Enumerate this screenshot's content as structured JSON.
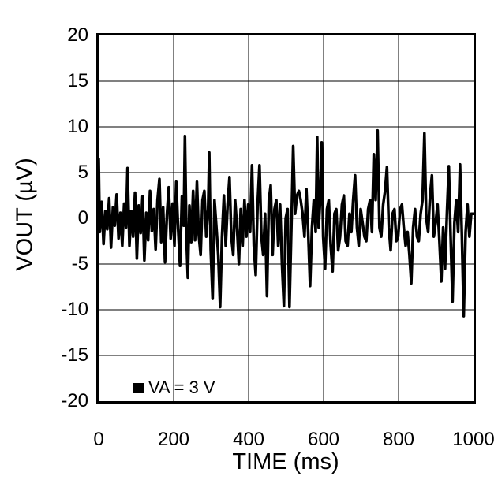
{
  "colors": {
    "background": "#ffffff",
    "trace": "#000000",
    "grid": "#000000",
    "zero_line": "#8c8c8c",
    "text": "#000000",
    "legend_marker": "#000000"
  },
  "chart_data": {
    "type": "line",
    "title": "",
    "xlabel": "TIME (ms)",
    "ylabel": "VOUT (µV)",
    "xlim": [
      0,
      1000
    ],
    "ylim": [
      -20,
      20
    ],
    "x_ticks": [
      0,
      200,
      400,
      600,
      800,
      1000
    ],
    "x_tick_labels": [
      "0",
      "200",
      "400",
      "600",
      "800",
      "1000"
    ],
    "y_ticks": [
      20,
      15,
      10,
      5,
      0,
      -5,
      -10,
      -15,
      -20
    ],
    "y_tick_labels": [
      "20",
      "15",
      "10",
      "5",
      "0",
      "-5",
      "-10",
      "-15",
      "-20"
    ],
    "grid": true,
    "legend": {
      "label": "VA = 3 V",
      "marker": "filled-square",
      "position": "bottom-left-inside"
    },
    "series": [
      {
        "name": "VA = 3 V",
        "color": "#000000",
        "x": [
          0,
          3,
          8,
          13,
          18,
          23,
          28,
          33,
          38,
          43,
          48,
          53,
          58,
          63,
          68,
          73,
          77,
          82,
          87,
          92,
          97,
          102,
          107,
          112,
          117,
          122,
          127,
          132,
          137,
          142,
          147,
          152,
          157,
          162,
          167,
          172,
          177,
          182,
          187,
          192,
          197,
          202,
          207,
          212,
          217,
          222,
          227,
          230,
          234,
          238,
          242,
          247,
          252,
          257,
          262,
          267,
          272,
          277,
          282,
          287,
          292,
          295,
          299,
          304,
          309,
          314,
          319,
          324,
          329,
          334,
          339,
          344,
          349,
          354,
          359,
          364,
          369,
          374,
          379,
          384,
          389,
          394,
          399,
          404,
          409,
          414,
          419,
          424,
          429,
          434,
          439,
          444,
          449,
          454,
          459,
          464,
          469,
          474,
          479,
          484,
          489,
          494,
          499,
          504,
          509,
          514,
          519,
          524,
          529,
          534,
          539,
          544,
          549,
          554,
          559,
          564,
          569,
          574,
          579,
          583,
          587,
          591,
          595,
          599,
          604,
          609,
          614,
          619,
          624,
          629,
          634,
          639,
          644,
          649,
          654,
          659,
          664,
          669,
          674,
          679,
          684,
          689,
          694,
          699,
          704,
          709,
          714,
          719,
          724,
          729,
          734,
          739,
          744,
          749,
          754,
          759,
          764,
          769,
          774,
          779,
          784,
          789,
          794,
          799,
          804,
          809,
          814,
          819,
          824,
          829,
          834,
          839,
          844,
          849,
          854,
          859,
          864,
          869,
          874,
          879,
          884,
          889,
          894,
          899,
          904,
          909,
          914,
          919,
          924,
          929,
          934,
          939,
          944,
          949,
          954,
          959,
          964,
          969,
          974,
          979,
          984,
          989,
          994,
          1000
        ],
        "y": [
          6.5,
          -1.5,
          1.8,
          -2.8,
          0.8,
          -1.2,
          2.2,
          -3.2,
          1.2,
          -0.8,
          2.6,
          -2.2,
          0.6,
          -3.0,
          1.6,
          -1.0,
          5.5,
          -3.0,
          0.8,
          -2.0,
          2.8,
          -4.4,
          1.4,
          -1.6,
          2.4,
          -4.6,
          0.6,
          -2.4,
          3.0,
          -1.4,
          1.0,
          -3.4,
          2.0,
          4.3,
          -2.6,
          1.2,
          -4.8,
          0.4,
          3.4,
          -2.2,
          1.6,
          -3.0,
          4.0,
          -1.2,
          -5.2,
          2.4,
          -0.8,
          9.0,
          -2.0,
          -6.5,
          1.4,
          -2.6,
          3.0,
          -2.4,
          4.0,
          -1.8,
          -4.0,
          2.0,
          3.0,
          -2.0,
          1.0,
          7.2,
          -3.5,
          -8.8,
          2.0,
          -1.0,
          -4.0,
          -9.7,
          -2.0,
          2.5,
          -3.0,
          1.5,
          4.5,
          -2.0,
          -4.0,
          2.0,
          -1.0,
          -5.0,
          1.0,
          -3.0,
          2.0,
          -2.0,
          1.5,
          -1.5,
          5.8,
          -3.0,
          -6.2,
          1.5,
          5.8,
          -2.0,
          -4.0,
          0.5,
          -8.5,
          2.0,
          3.6,
          -4.0,
          1.0,
          2.0,
          -3.0,
          1.5,
          -5.0,
          -9.6,
          0.0,
          1.0,
          -9.7,
          -1.0,
          7.9,
          0.5,
          2.5,
          3.0,
          2.0,
          0.5,
          -2.0,
          3.2,
          -1.5,
          -7.4,
          -1.0,
          2.0,
          -1.5,
          8.9,
          -1.0,
          2.0,
          8.3,
          -2.0,
          -5.5,
          1.0,
          2.0,
          -3.0,
          -5.8,
          0.5,
          1.0,
          -3.5,
          -2.0,
          1.5,
          2.5,
          -2.5,
          -3.0,
          0.5,
          -1.5,
          2.0,
          4.7,
          -1.0,
          -3.0,
          1.0,
          -0.5,
          -2.0,
          -2.5,
          1.0,
          2.0,
          -1.5,
          7.0,
          2.0,
          9.6,
          -1.0,
          -2.0,
          1.5,
          3.0,
          5.6,
          -1.0,
          -3.5,
          0.5,
          1.0,
          -2.5,
          -2.0,
          1.0,
          1.5,
          -1.0,
          -3.0,
          -1.5,
          -4.0,
          -7.1,
          -1.0,
          1.0,
          -2.0,
          -2.5,
          0.5,
          2.0,
          9.3,
          0.0,
          -1.5,
          2.5,
          4.7,
          -2.0,
          -0.5,
          1.5,
          -2.5,
          -6.9,
          -1.0,
          -5.5,
          0.5,
          5.7,
          -2.0,
          -9.1,
          -0.5,
          2.0,
          -1.5,
          5.9,
          -2.0,
          -10.7,
          -1.5,
          1.5,
          -2.0,
          0.5,
          0.5
        ]
      }
    ]
  }
}
